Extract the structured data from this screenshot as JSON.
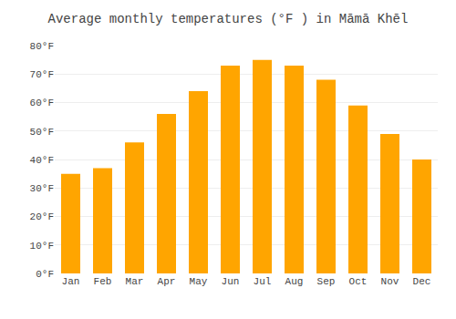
{
  "chart_data": {
    "type": "bar",
    "title": "Average monthly temperatures (°F ) in Māmā Khēl",
    "categories": [
      "Jan",
      "Feb",
      "Mar",
      "Apr",
      "May",
      "Jun",
      "Jul",
      "Aug",
      "Sep",
      "Oct",
      "Nov",
      "Dec"
    ],
    "values": [
      35,
      37,
      46,
      56,
      64,
      73,
      75,
      73,
      68,
      59,
      49,
      40
    ],
    "color": "#FFA500",
    "ylim": [
      0,
      80
    ],
    "yticks": [
      {
        "value": 0,
        "label": "0°F"
      },
      {
        "value": 10,
        "label": "10°F"
      },
      {
        "value": 20,
        "label": "20°F"
      },
      {
        "value": 30,
        "label": "30°F"
      },
      {
        "value": 40,
        "label": "40°F"
      },
      {
        "value": 50,
        "label": "50°F"
      },
      {
        "value": 60,
        "label": "60°F"
      },
      {
        "value": 70,
        "label": "70°F"
      },
      {
        "value": 80,
        "label": "80°F"
      }
    ],
    "grid": true
  }
}
